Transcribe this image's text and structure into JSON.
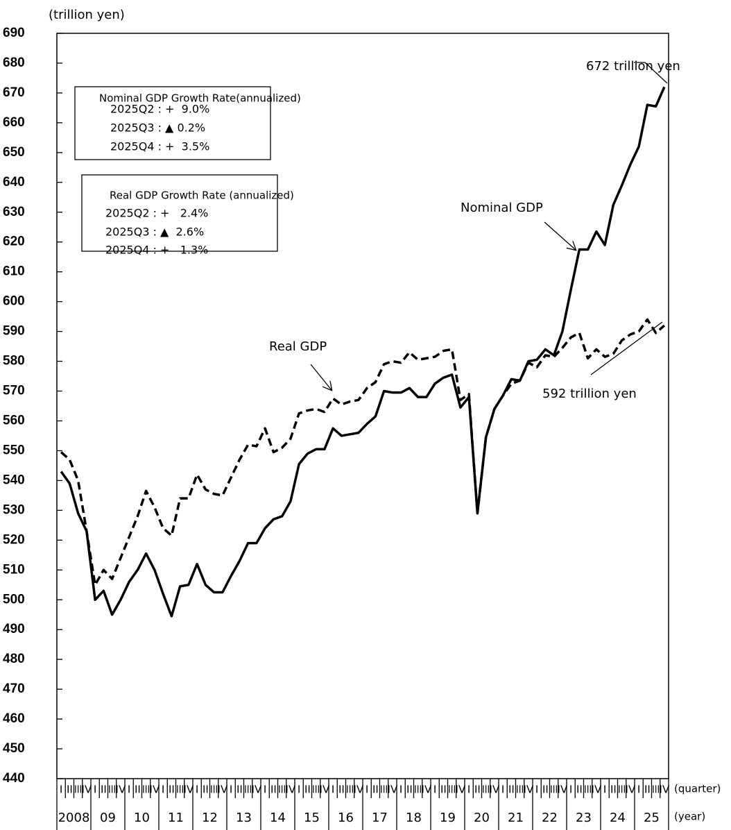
{
  "chart_data": {
    "type": "line",
    "ylabel": "(trillion yen)",
    "xlabel_quarter": "(quarter)",
    "xlabel_year": "(year)",
    "categories": [
      "I",
      "II",
      "III",
      "IV",
      "I",
      "II",
      "III",
      "IV",
      "I",
      "II",
      "III",
      "IV",
      "I",
      "II",
      "III",
      "IV",
      "I",
      "II",
      "III",
      "IV",
      "I",
      "II",
      "III",
      "IV",
      "I",
      "II",
      "III",
      "IV",
      "I",
      "II",
      "III",
      "IV",
      "I",
      "II",
      "III",
      "IV",
      "I",
      "II",
      "III",
      "IV",
      "I",
      "II",
      "III",
      "IV",
      "I",
      "II",
      "III",
      "IV",
      "I",
      "II",
      "III",
      "IV",
      "I",
      "II",
      "III",
      "IV",
      "I",
      "II",
      "III",
      "IV",
      "I",
      "II",
      "III",
      "IV",
      "I",
      "II",
      "III",
      "IV",
      "I",
      "II",
      "III",
      "IV"
    ],
    "years": [
      "2008",
      "09",
      "10",
      "11",
      "12",
      "13",
      "14",
      "15",
      "16",
      "17",
      "18",
      "19",
      "20",
      "21",
      "22",
      "23",
      "24",
      "25"
    ],
    "ylim": [
      440,
      690
    ],
    "yticks": [
      440,
      450,
      460,
      470,
      480,
      490,
      500,
      510,
      520,
      530,
      540,
      550,
      560,
      570,
      580,
      590,
      600,
      610,
      620,
      630,
      640,
      650,
      660,
      670,
      680,
      690
    ],
    "series": [
      {
        "name": "Nominal GDP",
        "color": "#000000",
        "dash": false,
        "values": [
          543,
          539,
          529,
          523,
          500,
          503,
          495,
          500,
          506,
          510,
          515.5,
          510,
          502,
          494.5,
          504.5,
          505,
          512,
          505,
          502.5,
          502.5,
          508,
          513,
          519,
          519,
          524,
          527,
          528,
          533,
          545.5,
          549,
          550.5,
          550.5,
          557.5,
          555,
          555.5,
          556,
          559,
          561.5,
          570,
          569.5,
          569.5,
          571,
          568,
          568,
          572.5,
          574.5,
          575.5,
          564.5,
          568,
          529,
          554.5,
          564,
          568.5,
          574,
          573.5,
          580,
          580.5,
          584,
          582,
          590,
          604,
          617.5,
          617.5,
          623.5,
          619,
          632.5,
          639,
          646,
          652,
          666,
          665.5,
          672
        ]
      },
      {
        "name": "Real GDP",
        "color": "#000000",
        "dash": true,
        "values": [
          549.5,
          547,
          540,
          523,
          505,
          510,
          507,
          514,
          521,
          528,
          536.5,
          531,
          524,
          521.5,
          534,
          534,
          542,
          537,
          535.5,
          535,
          541,
          547,
          552,
          551.5,
          557.5,
          549.5,
          551,
          554,
          562.5,
          563.5,
          564,
          563,
          567.5,
          565.5,
          566.5,
          567,
          571,
          573,
          579,
          580,
          579.5,
          583,
          580.5,
          581,
          581.5,
          583.5,
          584,
          567,
          569,
          529,
          554.5,
          564,
          568.5,
          572.5,
          573.5,
          579.5,
          578,
          582,
          581.5,
          584.5,
          588,
          589.5,
          581,
          584,
          581.5,
          582.5,
          587,
          589,
          590,
          594,
          589.5,
          592
        ]
      }
    ],
    "annotations": [
      "672 trillion yen",
      "592 trillion yen"
    ],
    "boxes": [
      {
        "title": "Nominal GDP Growth Rate(annualized)",
        "lines": [
          "2025Q2 : +  9.0%",
          "2025Q3 : ▲ 0.2%",
          "2025Q4 : +  3.5%"
        ]
      },
      {
        "title": "Real GDP Growth Rate (annualized)",
        "lines": [
          "2025Q2 : +   2.4%",
          "2025Q3 : ▲  2.6%",
          "2025Q4 : +   1.3%"
        ]
      }
    ]
  }
}
